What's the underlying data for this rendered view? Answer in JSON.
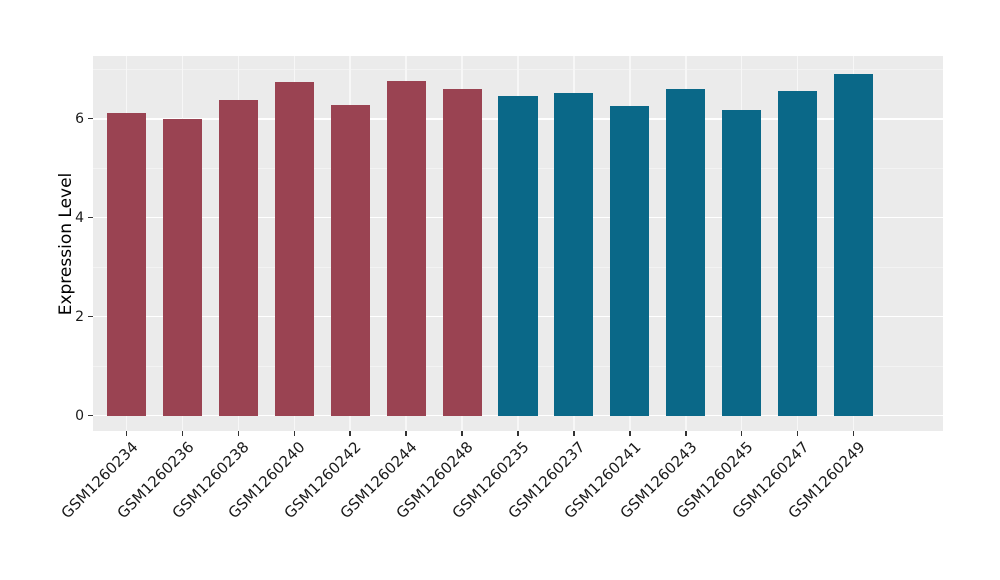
{
  "chart_data": {
    "type": "bar",
    "title": "",
    "xlabel": "",
    "ylabel": "Expression Level",
    "categories": [
      "GSM1260234",
      "GSM1260236",
      "GSM1260238",
      "GSM1260240",
      "GSM1260242",
      "GSM1260244",
      "GSM1260248",
      "GSM1260235",
      "GSM1260237",
      "GSM1260241",
      "GSM1260243",
      "GSM1260245",
      "GSM1260247",
      "GSM1260249"
    ],
    "values": [
      6.11,
      6.0,
      6.37,
      6.74,
      6.27,
      6.77,
      6.61,
      6.47,
      6.53,
      6.26,
      6.61,
      6.17,
      6.57,
      6.91
    ],
    "bar_colors": [
      "#9a4352",
      "#9a4352",
      "#9a4352",
      "#9a4352",
      "#9a4352",
      "#9a4352",
      "#9a4352",
      "#0a6888",
      "#0a6888",
      "#0a6888",
      "#0a6888",
      "#0a6888",
      "#0a6888",
      "#0a6888"
    ],
    "group_accent_colors": {
      "left_group": "#9a4352",
      "right_group": "#0a6888"
    },
    "yticks": [
      0,
      2,
      4,
      6
    ],
    "yticks_minor": [
      1,
      3,
      5,
      7
    ],
    "ylim": [
      0,
      7.3
    ],
    "bar_width_ratio": 0.7,
    "grid": "on",
    "legend": "none",
    "panel_bg": "#ebebeb",
    "grid_major_color": "#ffffff",
    "grid_minor_color": "#f3f3f3",
    "tick_color": "#333333",
    "text_color": "#1a1a1a"
  }
}
